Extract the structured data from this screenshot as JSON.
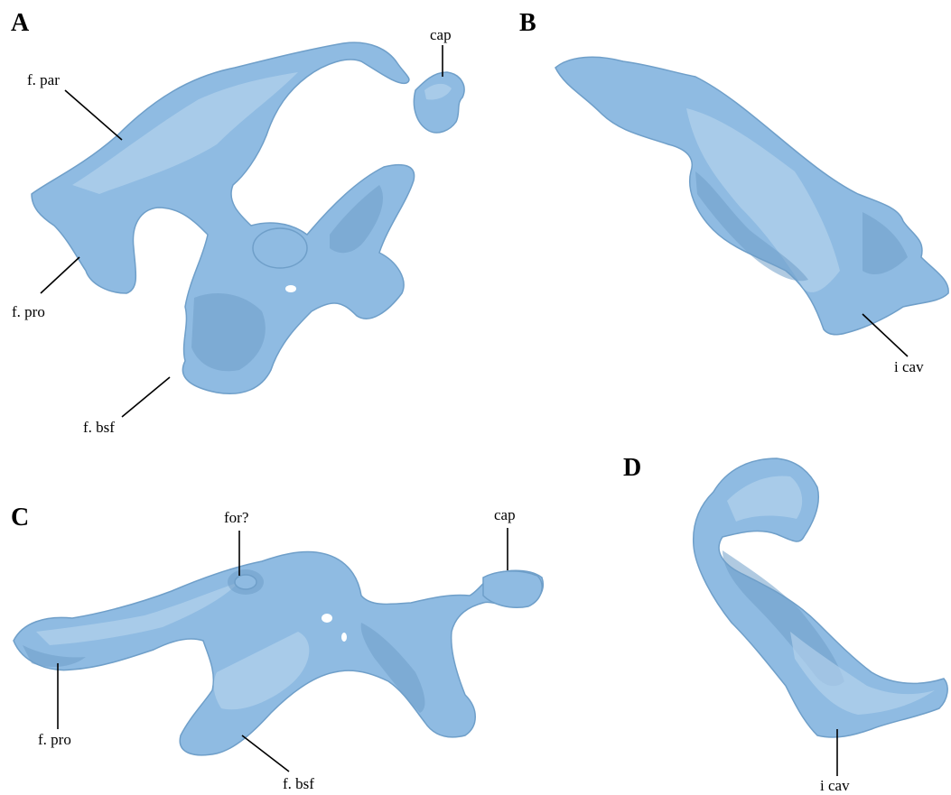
{
  "panels": {
    "a": {
      "letter": "A",
      "labels": {
        "f_par": "f. par",
        "cap": "cap",
        "f_pro": "f. pro",
        "f_bsf": "f. bsf"
      }
    },
    "b": {
      "letter": "B",
      "labels": {
        "i_cav": "i cav"
      }
    },
    "c": {
      "letter": "C",
      "labels": {
        "for": "for?",
        "cap": "cap",
        "f_pro": "f. pro",
        "f_bsf": "f. bsf"
      }
    },
    "d": {
      "letter": "D",
      "labels": {
        "i_cav": "i cav"
      }
    }
  },
  "colors": {
    "bone": "#8fbbe2",
    "bone_shadow": "#6f9ec8",
    "bone_highlight": "#b9d6ef",
    "background": "#ffffff",
    "text": "#000000"
  }
}
